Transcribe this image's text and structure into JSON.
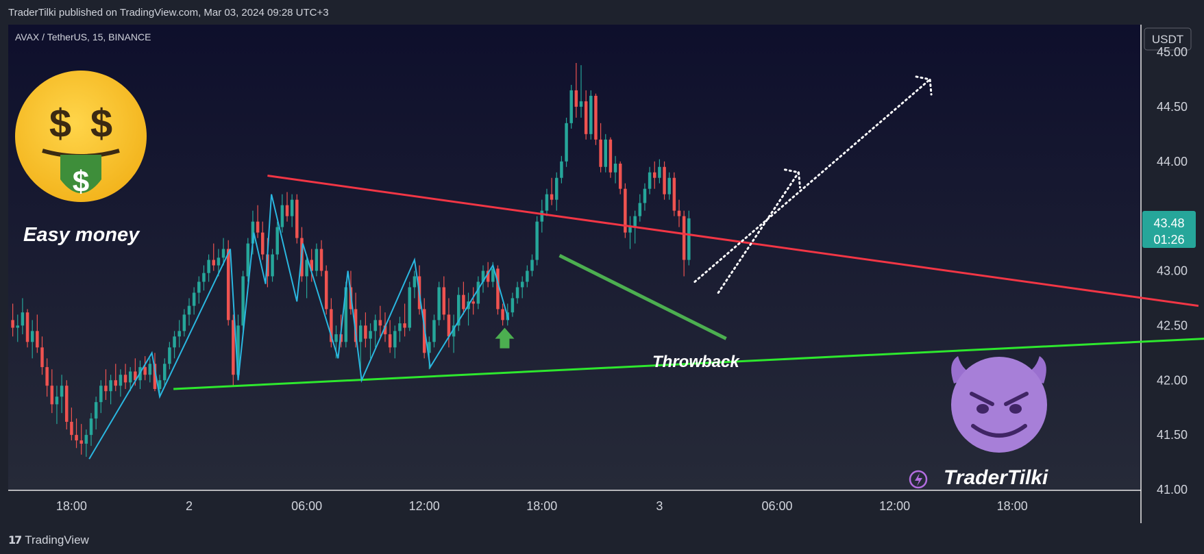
{
  "header": {
    "published_line": "TraderTilki published on TradingView.com, Mar 03, 2024 09:28 UTC+3"
  },
  "footer": {
    "brand": "TradingView"
  },
  "chart_data": {
    "type": "candlestick",
    "symbol_label": "AVAX / TetherUS, 15, BINANCE",
    "currency": "USDT",
    "y_ticks": [
      "45.00",
      "44.50",
      "44.00",
      "43.50",
      "43.00",
      "42.50",
      "42.00",
      "41.50",
      "41.00"
    ],
    "y_tick_values": [
      45.0,
      44.5,
      44.0,
      43.5,
      43.0,
      42.5,
      42.0,
      41.5,
      41.0
    ],
    "ylim": [
      41.0,
      45.0
    ],
    "x_ticks": [
      "18:00",
      "2",
      "06:00",
      "12:00",
      "18:00",
      "3",
      "06:00",
      "12:00",
      "18:00"
    ],
    "last_price": {
      "price": "43.48",
      "countdown": "01:26",
      "color": "#26a69a"
    },
    "colors": {
      "up": "#26a69a",
      "down": "#ef5350",
      "resistance": "#f23645",
      "support": "#2ee82e",
      "flag": "#4caf50",
      "zigzag": "#2ab7e0",
      "background": "#131722"
    },
    "annotations": [
      {
        "text": "Easy money",
        "kind": "label"
      },
      {
        "text": "Throwback",
        "kind": "label"
      },
      {
        "text": "TraderTilki",
        "kind": "signature"
      }
    ],
    "emojis": [
      {
        "icon": "money-mouth-face-icon",
        "glyph": "🤑"
      },
      {
        "icon": "smiling-devil-icon",
        "glyph": "😈"
      }
    ],
    "lines": [
      {
        "name": "descending-resistance",
        "kind": "trendline",
        "from": [
          4.0,
          43.87
        ],
        "to": [
          51.5,
          42.68
        ]
      },
      {
        "name": "ascending-support",
        "kind": "trendline",
        "from": [
          -0.8,
          41.92
        ],
        "to": [
          51.8,
          42.38
        ]
      },
      {
        "name": "flag-line",
        "kind": "trendline",
        "from": [
          18.9,
          43.14
        ],
        "to": [
          27.4,
          42.38
        ]
      },
      {
        "name": "projection-upper",
        "kind": "dotted",
        "from": [
          25.8,
          42.9
        ],
        "to": [
          37.8,
          44.75
        ]
      },
      {
        "name": "projection-lower",
        "kind": "dotted",
        "from": [
          27.0,
          42.8
        ],
        "to": [
          31.1,
          43.9
        ]
      }
    ],
    "zigzag": [
      [
        -5.1,
        41.28
      ],
      [
        -1.9,
        42.25
      ],
      [
        -1.5,
        41.85
      ],
      [
        2.1,
        43.2
      ],
      [
        2.5,
        42.0
      ],
      [
        3.3,
        43.35
      ],
      [
        3.9,
        42.88
      ],
      [
        4.2,
        43.7
      ],
      [
        5.5,
        42.72
      ],
      [
        5.8,
        43.25
      ],
      [
        7.6,
        42.2
      ],
      [
        8.1,
        43.0
      ],
      [
        8.8,
        42.0
      ],
      [
        11.5,
        43.1
      ],
      [
        12.3,
        42.12
      ],
      [
        15.5,
        43.05
      ],
      [
        16.3,
        42.55
      ]
    ],
    "arrows": [
      {
        "name": "throwback-arrow",
        "x": 16.1,
        "y": 42.48,
        "direction": "up"
      }
    ],
    "candles": [
      [
        -9.0,
        42.55,
        42.7,
        42.4,
        42.48
      ],
      [
        -8.75,
        42.48,
        42.6,
        42.35,
        42.5
      ],
      [
        -8.5,
        42.5,
        42.75,
        42.42,
        42.62
      ],
      [
        -8.25,
        42.62,
        42.65,
        42.3,
        42.35
      ],
      [
        -8.0,
        42.35,
        42.55,
        42.2,
        42.45
      ],
      [
        -7.75,
        42.45,
        42.6,
        42.25,
        42.3
      ],
      [
        -7.5,
        42.3,
        42.4,
        42.05,
        42.12
      ],
      [
        -7.25,
        42.12,
        42.2,
        41.85,
        41.95
      ],
      [
        -7.0,
        41.95,
        42.1,
        41.7,
        41.78
      ],
      [
        -6.75,
        41.78,
        41.95,
        41.6,
        41.85
      ],
      [
        -6.5,
        41.85,
        42.05,
        41.7,
        41.95
      ],
      [
        -6.25,
        41.95,
        42.0,
        41.55,
        41.62
      ],
      [
        -6.0,
        41.62,
        41.75,
        41.45,
        41.5
      ],
      [
        -5.75,
        41.5,
        41.65,
        41.38,
        41.45
      ],
      [
        -5.5,
        41.45,
        41.6,
        41.32,
        41.42
      ],
      [
        -5.25,
        41.42,
        41.55,
        41.3,
        41.5
      ],
      [
        -5.0,
        41.5,
        41.7,
        41.4,
        41.65
      ],
      [
        -4.75,
        41.65,
        41.85,
        41.55,
        41.8
      ],
      [
        -4.5,
        41.8,
        42.0,
        41.7,
        41.95
      ],
      [
        -4.25,
        41.95,
        42.1,
        41.82,
        41.9
      ],
      [
        -4.0,
        41.9,
        42.05,
        41.78,
        42.0
      ],
      [
        -3.75,
        42.0,
        42.15,
        41.9,
        41.95
      ],
      [
        -3.5,
        41.95,
        42.1,
        41.85,
        42.05
      ],
      [
        -3.25,
        42.05,
        42.15,
        41.92,
        41.98
      ],
      [
        -3.0,
        41.98,
        42.12,
        41.9,
        42.08
      ],
      [
        -2.75,
        42.08,
        42.2,
        41.95,
        42.0
      ],
      [
        -2.5,
        42.0,
        42.18,
        41.92,
        42.12
      ],
      [
        -2.25,
        42.12,
        42.22,
        42.0,
        42.05
      ],
      [
        -2.0,
        42.05,
        42.2,
        41.98,
        42.15
      ],
      [
        -1.75,
        42.15,
        42.25,
        41.9,
        41.92
      ],
      [
        -1.5,
        41.92,
        42.05,
        41.85,
        42.0
      ],
      [
        -1.25,
        42.0,
        42.2,
        41.95,
        42.15
      ],
      [
        -1.0,
        42.15,
        42.35,
        42.1,
        42.3
      ],
      [
        -0.75,
        42.3,
        42.45,
        42.2,
        42.4
      ],
      [
        -0.5,
        42.4,
        42.55,
        42.3,
        42.45
      ],
      [
        -0.25,
        42.45,
        42.65,
        42.4,
        42.6
      ],
      [
        0.0,
        42.6,
        42.75,
        42.5,
        42.68
      ],
      [
        0.25,
        42.68,
        42.85,
        42.6,
        42.8
      ],
      [
        0.5,
        42.8,
        42.95,
        42.7,
        42.9
      ],
      [
        0.75,
        42.9,
        43.05,
        42.82,
        42.98
      ],
      [
        1.0,
        42.98,
        43.15,
        42.9,
        43.1
      ],
      [
        1.25,
        43.1,
        43.25,
        43.0,
        43.05
      ],
      [
        1.5,
        43.05,
        43.2,
        42.95,
        43.12
      ],
      [
        1.75,
        43.12,
        43.3,
        43.05,
        43.2
      ],
      [
        2.0,
        43.2,
        43.28,
        42.5,
        42.55
      ],
      [
        2.25,
        42.55,
        42.6,
        41.95,
        42.05
      ],
      [
        2.5,
        42.05,
        42.6,
        42.0,
        42.5
      ],
      [
        2.75,
        42.5,
        43.0,
        42.45,
        42.95
      ],
      [
        3.0,
        42.95,
        43.3,
        42.9,
        43.25
      ],
      [
        3.25,
        43.25,
        43.55,
        43.15,
        43.45
      ],
      [
        3.5,
        43.45,
        43.6,
        43.3,
        43.35
      ],
      [
        3.75,
        43.35,
        43.45,
        43.1,
        43.15
      ],
      [
        4.0,
        43.15,
        43.3,
        42.85,
        42.95
      ],
      [
        4.25,
        42.95,
        43.2,
        42.9,
        43.15
      ],
      [
        4.5,
        43.15,
        43.45,
        43.1,
        43.4
      ],
      [
        4.75,
        43.4,
        43.7,
        43.35,
        43.6
      ],
      [
        5.0,
        43.6,
        43.72,
        43.45,
        43.5
      ],
      [
        5.25,
        43.5,
        43.7,
        43.4,
        43.65
      ],
      [
        5.5,
        43.65,
        43.7,
        43.25,
        43.3
      ],
      [
        5.75,
        43.3,
        43.4,
        42.9,
        42.95
      ],
      [
        6.0,
        42.95,
        43.15,
        42.75,
        43.1
      ],
      [
        6.25,
        43.1,
        43.2,
        42.9,
        43.0
      ],
      [
        6.5,
        43.0,
        43.25,
        42.95,
        43.2
      ],
      [
        6.75,
        43.2,
        43.28,
        42.95,
        43.0
      ],
      [
        7.0,
        43.0,
        43.05,
        42.6,
        42.65
      ],
      [
        7.25,
        42.65,
        42.75,
        42.3,
        42.35
      ],
      [
        7.5,
        42.35,
        42.5,
        42.2,
        42.42
      ],
      [
        7.75,
        42.42,
        42.6,
        42.3,
        42.35
      ],
      [
        8.0,
        42.35,
        42.9,
        42.3,
        42.85
      ],
      [
        8.25,
        42.85,
        43.0,
        42.6,
        42.65
      ],
      [
        8.5,
        42.65,
        42.8,
        42.3,
        42.35
      ],
      [
        8.75,
        42.35,
        42.55,
        42.1,
        42.5
      ],
      [
        9.0,
        42.5,
        42.62,
        42.3,
        42.38
      ],
      [
        9.25,
        42.38,
        42.52,
        42.2,
        42.45
      ],
      [
        9.5,
        42.45,
        42.6,
        42.3,
        42.55
      ],
      [
        9.75,
        42.55,
        42.68,
        42.4,
        42.5
      ],
      [
        10.0,
        42.5,
        42.62,
        42.35,
        42.42
      ],
      [
        10.25,
        42.42,
        42.55,
        42.25,
        42.3
      ],
      [
        10.5,
        42.3,
        42.5,
        42.2,
        42.45
      ],
      [
        10.75,
        42.45,
        42.58,
        42.35,
        42.52
      ],
      [
        11.0,
        42.52,
        42.7,
        42.4,
        42.48
      ],
      [
        11.25,
        42.48,
        42.9,
        42.45,
        42.85
      ],
      [
        11.5,
        42.85,
        43.0,
        42.75,
        42.95
      ],
      [
        11.75,
        42.95,
        43.05,
        42.6,
        42.65
      ],
      [
        12.0,
        42.65,
        42.75,
        42.2,
        42.25
      ],
      [
        12.25,
        42.25,
        42.4,
        42.1,
        42.35
      ],
      [
        12.5,
        42.35,
        42.6,
        42.3,
        42.55
      ],
      [
        12.75,
        42.55,
        42.9,
        42.5,
        42.85
      ],
      [
        13.0,
        42.85,
        42.95,
        42.55,
        42.6
      ],
      [
        13.25,
        42.6,
        42.75,
        42.3,
        42.4
      ],
      [
        13.5,
        42.4,
        42.6,
        42.25,
        42.5
      ],
      [
        13.75,
        42.5,
        42.85,
        42.45,
        42.78
      ],
      [
        14.0,
        42.78,
        42.9,
        42.6,
        42.65
      ],
      [
        14.25,
        42.65,
        42.8,
        42.5,
        42.72
      ],
      [
        14.5,
        42.72,
        42.85,
        42.6,
        42.7
      ],
      [
        14.75,
        42.7,
        42.95,
        42.65,
        42.9
      ],
      [
        15.0,
        42.9,
        43.05,
        42.8,
        43.0
      ],
      [
        15.25,
        43.0,
        43.08,
        42.85,
        42.9
      ],
      [
        15.5,
        42.9,
        43.08,
        42.85,
        43.02
      ],
      [
        15.75,
        43.02,
        43.05,
        42.6,
        42.65
      ],
      [
        16.0,
        42.65,
        42.7,
        42.5,
        42.55
      ],
      [
        16.25,
        42.55,
        42.7,
        42.5,
        42.62
      ],
      [
        16.5,
        42.62,
        42.8,
        42.58,
        42.75
      ],
      [
        16.75,
        42.75,
        42.9,
        42.7,
        42.85
      ],
      [
        17.0,
        42.85,
        42.95,
        42.75,
        42.9
      ],
      [
        17.25,
        42.9,
        43.05,
        42.85,
        43.0
      ],
      [
        17.5,
        43.0,
        43.15,
        42.95,
        43.1
      ],
      [
        17.75,
        43.1,
        43.5,
        43.05,
        43.45
      ],
      [
        18.0,
        43.45,
        43.65,
        43.35,
        43.55
      ],
      [
        18.25,
        43.55,
        43.75,
        43.5,
        43.7
      ],
      [
        18.5,
        43.7,
        43.85,
        43.6,
        43.65
      ],
      [
        18.75,
        43.65,
        43.9,
        43.55,
        43.85
      ],
      [
        19.0,
        43.85,
        44.05,
        43.8,
        44.0
      ],
      [
        19.25,
        44.0,
        44.4,
        43.95,
        44.35
      ],
      [
        19.5,
        44.35,
        44.7,
        44.3,
        44.65
      ],
      [
        19.75,
        44.65,
        44.9,
        44.4,
        44.5
      ],
      [
        20.0,
        44.5,
        44.88,
        44.4,
        44.55
      ],
      [
        20.25,
        44.55,
        44.65,
        44.2,
        44.25
      ],
      [
        20.5,
        44.25,
        44.65,
        44.2,
        44.6
      ],
      [
        20.75,
        44.6,
        44.62,
        44.15,
        44.2
      ],
      [
        21.0,
        44.2,
        44.35,
        43.9,
        43.95
      ],
      [
        21.25,
        43.95,
        44.25,
        43.9,
        44.2
      ],
      [
        21.5,
        44.2,
        44.22,
        43.85,
        43.9
      ],
      [
        21.75,
        43.9,
        44.05,
        43.8,
        43.98
      ],
      [
        22.0,
        43.98,
        44.0,
        43.7,
        43.75
      ],
      [
        22.25,
        43.75,
        43.8,
        43.3,
        43.35
      ],
      [
        22.5,
        43.35,
        43.5,
        43.2,
        43.4
      ],
      [
        22.75,
        43.4,
        43.55,
        43.25,
        43.5
      ],
      [
        23.0,
        43.5,
        43.7,
        43.45,
        43.62
      ],
      [
        23.25,
        43.62,
        43.8,
        43.55,
        43.75
      ],
      [
        23.5,
        43.75,
        43.95,
        43.7,
        43.9
      ],
      [
        23.75,
        43.9,
        44.0,
        43.75,
        43.85
      ],
      [
        24.0,
        43.85,
        44.02,
        43.8,
        43.95
      ],
      [
        24.25,
        43.95,
        44.0,
        43.65,
        43.7
      ],
      [
        24.5,
        43.7,
        43.9,
        43.65,
        43.85
      ],
      [
        24.75,
        43.85,
        43.9,
        43.5,
        43.55
      ],
      [
        25.0,
        43.55,
        43.65,
        43.4,
        43.5
      ],
      [
        25.25,
        43.5,
        43.55,
        42.95,
        43.1
      ],
      [
        25.5,
        43.1,
        43.55,
        43.05,
        43.48
      ]
    ]
  }
}
